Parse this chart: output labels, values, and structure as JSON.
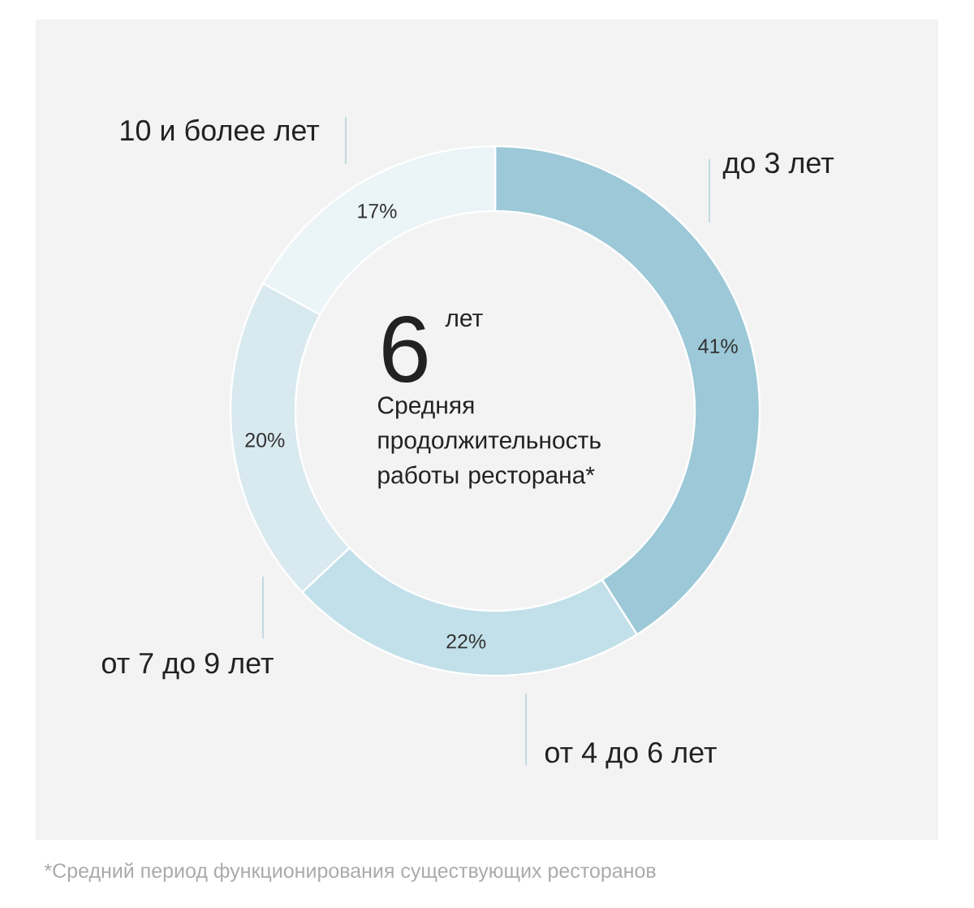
{
  "chart_data": {
    "type": "donut",
    "categories": [
      "до 3 лет",
      "от 4 до 6 лет",
      "от 7 до 9 лет",
      "10 и более лет"
    ],
    "values": [
      41,
      22,
      20,
      17
    ],
    "colors": [
      "#9cc8d7",
      "#c2e0e9",
      "#d8e9ef",
      "#ebf4f7"
    ],
    "value_labels": [
      "41%",
      "22%",
      "20%",
      "17%"
    ],
    "annotations": [
      "6",
      "лет",
      "Средняя продолжительность работы ресторана*",
      "*Средний период функционирования существующих ресторанов"
    ]
  }
}
